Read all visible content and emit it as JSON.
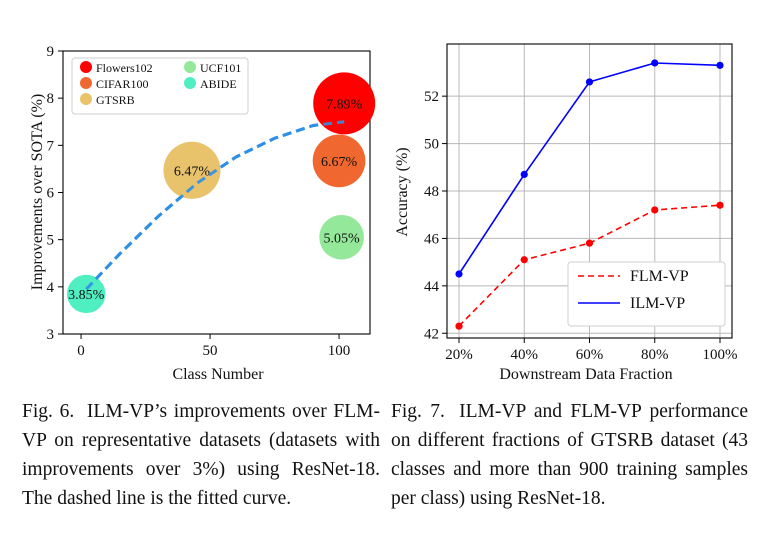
{
  "captions": {
    "fig6": {
      "label": "Fig. 6.",
      "text": "ILM-VP’s improvements over FLM-VP on representative datasets (datasets with improvements over 3%) using ResNet-18. The dashed line is the fitted curve."
    },
    "fig7": {
      "label": "Fig. 7.",
      "text": "ILM-VP and FLM-VP performance on different fractions of GTSRB dataset (43 classes and more than 900 training samples per class) using ResNet-18."
    }
  },
  "chart_data": [
    {
      "type": "scatter",
      "xlabel": "Class Number",
      "ylabel": "Improvements over SOTA (%)",
      "xlim": [
        -7,
        112
      ],
      "ylim": [
        3,
        9
      ],
      "xticks": [
        0,
        50,
        100
      ],
      "yticks": [
        3,
        4,
        5,
        6,
        7,
        8,
        9
      ],
      "grid": false,
      "legend_position": "top-left",
      "series": [
        {
          "name": "Flowers102",
          "x": 102,
          "y": 7.89,
          "label": "7.89%",
          "color": "#ff0000",
          "size": 1.0
        },
        {
          "name": "CIFAR100",
          "x": 100,
          "y": 6.67,
          "label": "6.67%",
          "color": "#f06830",
          "size": 0.85
        },
        {
          "name": "GTSRB",
          "x": 43,
          "y": 6.47,
          "label": "6.47%",
          "color": "#e9c26c",
          "size": 0.92
        },
        {
          "name": "UCF101",
          "x": 101,
          "y": 5.05,
          "label": "5.05%",
          "color": "#93e89a",
          "size": 0.72
        },
        {
          "name": "ABIDE",
          "x": 2,
          "y": 3.85,
          "label": "3.85%",
          "color": "#4fefc2",
          "size": 0.62
        }
      ],
      "fitted_curve": {
        "style": "dashed",
        "color": "#2f8fe6",
        "points": [
          [
            2,
            3.95
          ],
          [
            15,
            4.7
          ],
          [
            30,
            5.5
          ],
          [
            45,
            6.2
          ],
          [
            60,
            6.75
          ],
          [
            75,
            7.15
          ],
          [
            90,
            7.42
          ],
          [
            102,
            7.5
          ]
        ]
      }
    },
    {
      "type": "line",
      "xlabel": "Downstream Data Fraction",
      "ylabel": "Accuracy (%)",
      "categories": [
        "20%",
        "40%",
        "60%",
        "80%",
        "100%"
      ],
      "ylim": [
        41.8,
        54.2
      ],
      "yticks": [
        42,
        44,
        46,
        48,
        50,
        52
      ],
      "grid": true,
      "legend_position": "bottom-right",
      "series": [
        {
          "name": "FLM-VP",
          "values": [
            42.3,
            45.1,
            45.8,
            47.2,
            47.4
          ],
          "color": "#ff0000",
          "style": "dashed"
        },
        {
          "name": "ILM-VP",
          "values": [
            44.5,
            48.7,
            52.6,
            53.4,
            53.3
          ],
          "color": "#0000ff",
          "style": "solid"
        }
      ]
    }
  ]
}
